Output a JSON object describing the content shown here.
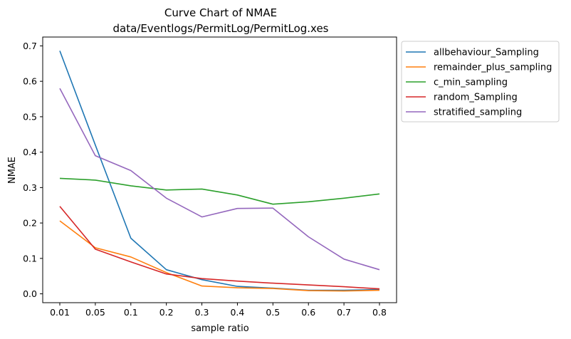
{
  "chart_data": {
    "type": "line",
    "title": "Curve Chart of NMAE",
    "subtitle": "data/Eventlogs/PermitLog/PermitLog.xes",
    "xlabel": "sample ratio",
    "ylabel": "NMAE",
    "categories": [
      "0.01",
      "0.05",
      "0.1",
      "0.2",
      "0.3",
      "0.4",
      "0.5",
      "0.6",
      "0.7",
      "0.8"
    ],
    "ylim": [
      -0.025,
      0.725
    ],
    "yticks": [
      "0.0",
      "0.1",
      "0.2",
      "0.3",
      "0.4",
      "0.5",
      "0.6",
      "0.7"
    ],
    "grid": false,
    "legend_position": "outside-top-right",
    "series": [
      {
        "name": "allbehaviour_Sampling",
        "color": "#1f77b4",
        "values": [
          0.686,
          0.42,
          0.157,
          0.068,
          0.04,
          0.021,
          0.016,
          0.01,
          0.01,
          0.012
        ]
      },
      {
        "name": "remainder_plus_sampling",
        "color": "#ff7f0e",
        "values": [
          0.206,
          0.13,
          0.104,
          0.06,
          0.022,
          0.017,
          0.015,
          0.009,
          0.008,
          0.01
        ]
      },
      {
        "name": "c_min_sampling",
        "color": "#2ca02c",
        "values": [
          0.326,
          0.321,
          0.305,
          0.293,
          0.296,
          0.279,
          0.253,
          0.26,
          0.27,
          0.282
        ]
      },
      {
        "name": "random_Sampling",
        "color": "#d62728",
        "values": [
          0.247,
          0.126,
          0.09,
          0.056,
          0.043,
          0.036,
          0.03,
          0.025,
          0.02,
          0.014
        ]
      },
      {
        "name": "stratified_sampling",
        "color": "#9467bd",
        "values": [
          0.58,
          0.39,
          0.348,
          0.27,
          0.217,
          0.241,
          0.242,
          0.161,
          0.098,
          0.068
        ]
      }
    ]
  }
}
